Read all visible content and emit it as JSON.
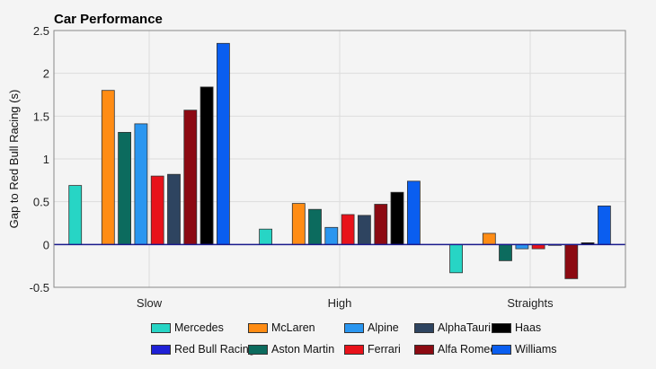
{
  "chart_data": {
    "type": "bar",
    "title": "Car Performance",
    "xlabel": "",
    "ylabel": "Gap to Red Bull Racing (s)",
    "categories": [
      "Slow",
      "High",
      "Straights"
    ],
    "ylim": [
      -0.5,
      2.5
    ],
    "yticks": [
      -0.5,
      0,
      0.5,
      1,
      1.5,
      2,
      2.5
    ],
    "ytick_labels": [
      "-0.5",
      "0",
      "0.5",
      "1",
      "1.5",
      "2",
      "2.5"
    ],
    "grid": true,
    "legend_position": "bottom",
    "series": [
      {
        "name": "Mercedes",
        "color": "#27d5c5",
        "values": [
          0.69,
          0.18,
          -0.33
        ]
      },
      {
        "name": "Red Bull Racing",
        "color": "#1f21d6",
        "values": [
          0.0,
          0.0,
          0.0
        ]
      },
      {
        "name": "McLaren",
        "color": "#ff8c14",
        "values": [
          1.8,
          0.48,
          0.13
        ]
      },
      {
        "name": "Aston Martin",
        "color": "#0c6b5e",
        "values": [
          1.31,
          0.41,
          -0.19
        ]
      },
      {
        "name": "Alpine",
        "color": "#2a96f0",
        "values": [
          1.41,
          0.2,
          -0.05
        ]
      },
      {
        "name": "Ferrari",
        "color": "#e8121a",
        "values": [
          0.8,
          0.35,
          -0.05
        ]
      },
      {
        "name": "AlphaTauri",
        "color": "#2e4460",
        "values": [
          0.82,
          0.34,
          -0.01
        ]
      },
      {
        "name": "Alfa Romeo",
        "color": "#8c0a12",
        "values": [
          1.57,
          0.47,
          -0.4
        ]
      },
      {
        "name": "Haas",
        "color": "#000000",
        "values": [
          1.84,
          0.61,
          0.02
        ]
      },
      {
        "name": "Williams",
        "color": "#0a5ef0",
        "values": [
          2.35,
          0.74,
          0.45
        ]
      }
    ]
  },
  "legend": {
    "order": [
      "Mercedes",
      "McLaren",
      "Alpine",
      "AlphaTauri",
      "Haas",
      "Red Bull Racing",
      "Aston Martin",
      "Ferrari",
      "Alfa Romeo",
      "Williams"
    ]
  }
}
